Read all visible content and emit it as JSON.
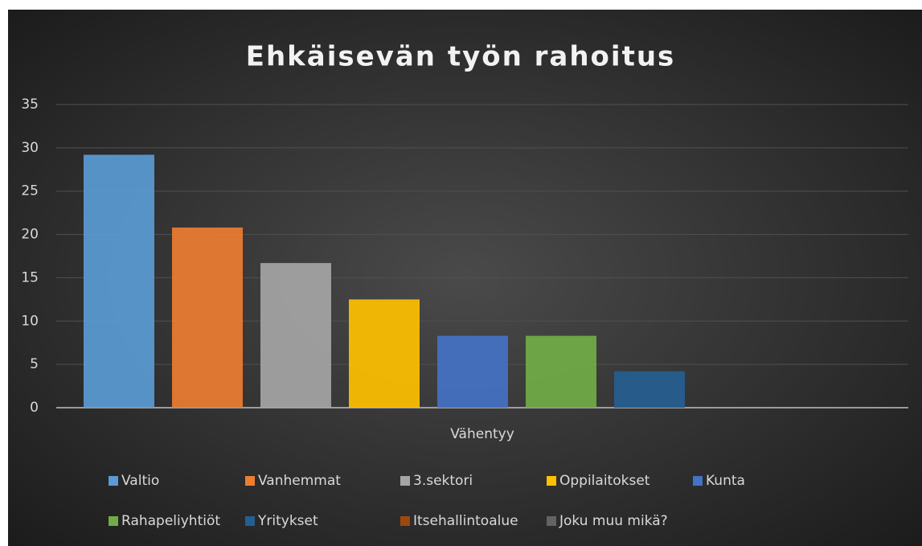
{
  "chart_data": {
    "type": "bar",
    "title": "Ehkäisevän työn rahoitus",
    "categories": [
      "Vähentyy"
    ],
    "series": [
      {
        "name": "Valtio",
        "color": "#5b9bd5",
        "values": [
          29.2
        ]
      },
      {
        "name": "Vanhemmat",
        "color": "#ed7d31",
        "values": [
          20.8
        ]
      },
      {
        "name": "3.sektori",
        "color": "#a5a5a5",
        "values": [
          16.7
        ]
      },
      {
        "name": "Oppilaitokset",
        "color": "#ffc000",
        "values": [
          12.5
        ]
      },
      {
        "name": "Kunta",
        "color": "#4472c4",
        "values": [
          8.3
        ]
      },
      {
        "name": "Rahapeliyhtiöt",
        "color": "#70ad47",
        "values": [
          8.3
        ]
      },
      {
        "name": "Yritykset",
        "color": "#255e91",
        "values": [
          4.2
        ]
      },
      {
        "name": "Itsehallintoalue",
        "color": "#9e480e",
        "values": [
          0
        ]
      },
      {
        "name": "Joku muu mikä?",
        "color": "#636363",
        "values": [
          0
        ]
      }
    ],
    "ylim": [
      0,
      35
    ],
    "yticks": [
      0,
      5,
      10,
      15,
      20,
      25,
      30,
      35
    ],
    "grid": true,
    "legend": "bottom"
  }
}
